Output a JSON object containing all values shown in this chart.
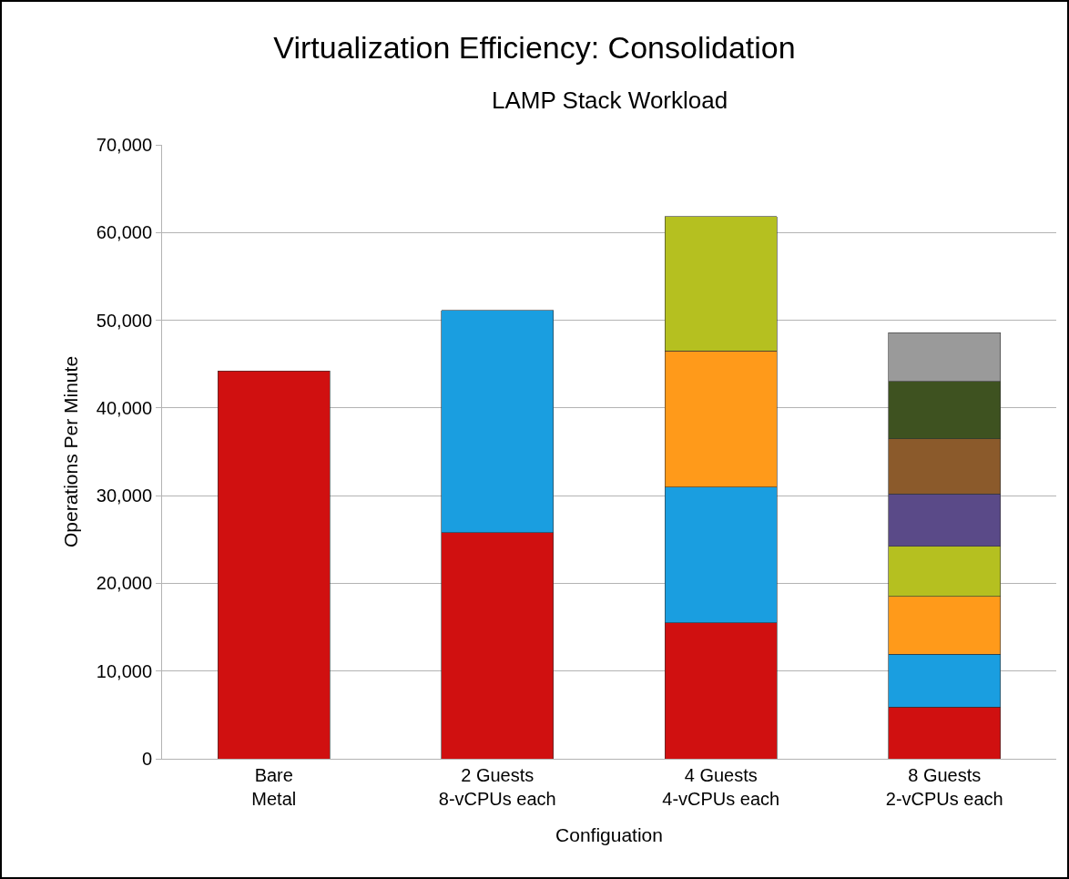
{
  "chart_data": {
    "type": "bar",
    "stacked": true,
    "title": "Virtualization Efficiency: Consolidation",
    "subtitle": "LAMP Stack Workload",
    "xlabel": "Configuation",
    "ylabel": "Operations Per Minute",
    "categories": [
      "Bare\nMetal",
      "2 Guests\n8-vCPUs each",
      "4 Guests\n4-vCPUs each",
      "8 Guests\n2-vCPUs each"
    ],
    "series": [
      {
        "color": "#d01010",
        "values": [
          44200,
          25800,
          15500,
          5900
        ]
      },
      {
        "color": "#1a9ee0",
        "values": [
          null,
          25300,
          15500,
          6000
        ]
      },
      {
        "color": "#ff9a1a",
        "values": [
          null,
          null,
          15500,
          6600
        ]
      },
      {
        "color": "#b5c020",
        "values": [
          null,
          null,
          15300,
          5700
        ]
      },
      {
        "color": "#5a4a88",
        "values": [
          null,
          null,
          null,
          6000
        ]
      },
      {
        "color": "#8b5a2b",
        "values": [
          null,
          null,
          null,
          6300
        ]
      },
      {
        "color": "#3e5220",
        "values": [
          null,
          null,
          null,
          6500
        ]
      },
      {
        "color": "#9a9a9a",
        "values": [
          null,
          null,
          null,
          5600
        ]
      }
    ],
    "ylim": [
      0,
      70000
    ],
    "yticks": [
      0,
      {
        "value": 10000,
        "label": "10,000"
      },
      {
        "value": 20000,
        "label": "20,000"
      },
      {
        "value": 30000,
        "label": "30,000"
      },
      {
        "value": 40000,
        "label": "40,000"
      },
      {
        "value": 50000,
        "label": "50,000"
      },
      {
        "value": 60000,
        "label": "60,000"
      },
      {
        "value": 70000,
        "label": "70,000"
      }
    ],
    "grid": "y"
  }
}
